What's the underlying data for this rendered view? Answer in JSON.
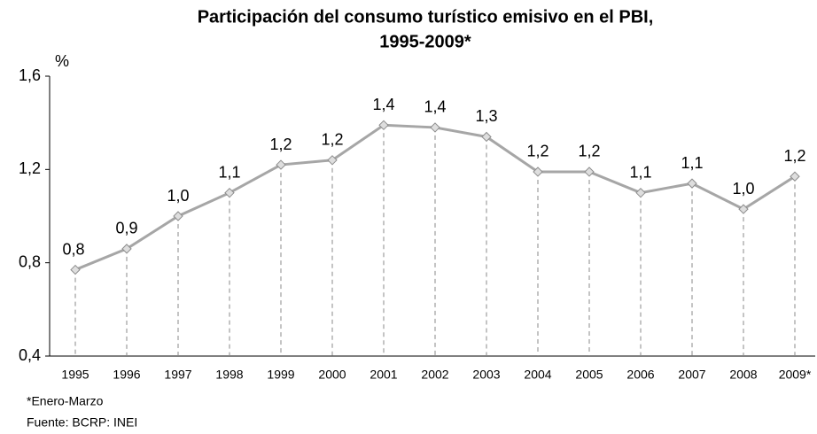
{
  "chart_data": {
    "type": "line",
    "title": [
      "Participación del consumo turístico emisivo en el PBI,",
      "1995-2009*"
    ],
    "y_label": "%",
    "categories": [
      "1995",
      "1996",
      "1997",
      "1998",
      "1999",
      "2000",
      "2001",
      "2002",
      "2003",
      "2004",
      "2005",
      "2006",
      "2007",
      "2008",
      "2009*"
    ],
    "series": [
      {
        "name": "Participación",
        "color": "#a6a6a6",
        "values": [
          0.77,
          0.86,
          1.0,
          1.1,
          1.22,
          1.24,
          1.39,
          1.38,
          1.34,
          1.19,
          1.19,
          1.1,
          1.14,
          1.03,
          1.17
        ],
        "value_labels": [
          "0,8",
          "0,9",
          "1,0",
          "1,1",
          "1,2",
          "1,2",
          "1,4",
          "1,4",
          "1,3",
          "1,2",
          "1,2",
          "1,1",
          "1,1",
          "1,0",
          "1,2"
        ]
      }
    ],
    "ylim": [
      0.4,
      1.6
    ],
    "yticks": [
      {
        "value": 0.4,
        "label": "0,4"
      },
      {
        "value": 0.8,
        "label": "0,8"
      },
      {
        "value": 1.2,
        "label": "1,2"
      },
      {
        "value": 1.6,
        "label": "1,6"
      }
    ],
    "notes": [
      "*Enero-Marzo",
      "Fuente: BCRP: INEI"
    ]
  }
}
